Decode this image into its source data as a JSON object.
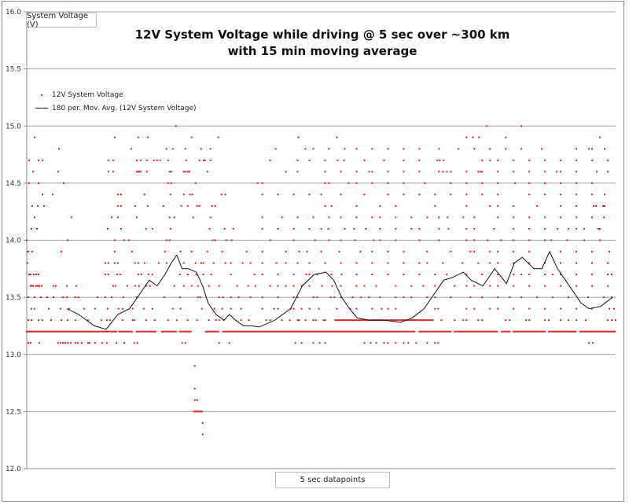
{
  "chart_data": {
    "type": "scatter",
    "title_line1": "12V System Voltage while driving @ 5 sec over ~300 km",
    "title_line2": "with 15 min moving average",
    "ylabel": "System Voltage (V)",
    "xlabel": "5 sec datapoints",
    "ylim": [
      12.0,
      16.0
    ],
    "xlim": [
      0,
      750
    ],
    "yticks": [
      "12.0",
      "12.5",
      "13.0",
      "13.5",
      "14.0",
      "14.5",
      "15.0",
      "15.5",
      "16.0"
    ],
    "grid": true,
    "legend_position": "top-left",
    "colors": {
      "scatter": "#d42020",
      "moving_average": "#111111",
      "grid": "#a0a0a0"
    },
    "series": [
      {
        "name": "12V System Voltage",
        "kind": "scatter",
        "continuous_ranges": [
          {
            "y": 13.2,
            "x": [
              [
                0,
                115
              ],
              [
                118,
                135
              ],
              [
                140,
                165
              ],
              [
                172,
                190
              ],
              [
                195,
                210
              ],
              [
                228,
                245
              ],
              [
                250,
                495
              ],
              [
                500,
                540
              ],
              [
                545,
                600
              ],
              [
                605,
                615
              ],
              [
                620,
                660
              ],
              [
                665,
                700
              ],
              [
                705,
                750
              ]
            ]
          },
          {
            "y": 13.3,
            "x": [
              [
                393,
                518
              ]
            ]
          }
        ],
        "points_by_level": [
          {
            "y": 12.3,
            "x": [
              224
            ]
          },
          {
            "y": 12.4,
            "x": [
              224
            ]
          },
          {
            "y": 12.5,
            "x": [
              213,
              215,
              217,
              219,
              221,
              223
            ]
          },
          {
            "y": 12.6,
            "x": [
              214,
              217
            ]
          },
          {
            "y": 12.7,
            "x": [
              214
            ]
          },
          {
            "y": 12.9,
            "x": [
              214
            ]
          },
          {
            "y": 13.1,
            "x": [
              2,
              5,
              16,
              40,
              43,
              46,
              49,
              52,
              56,
              62,
              65,
              70,
              78,
              80,
              87,
              96,
              102,
              114,
              124,
              137,
              141,
              198,
              202,
              245,
              258,
              342,
              350,
              365,
              373,
              380,
              430,
              438,
              445,
              455,
              460,
              470,
              480,
              486,
              496,
              510,
              520,
              524,
              716,
              721
            ]
          },
          {
            "y": 13.3,
            "x": [
              2,
              6,
              15,
              20,
              31,
              44,
              52,
              62,
              78,
              95,
              102,
              106,
              122,
              135,
              137,
              152,
              163,
              180,
              191,
              205,
              217,
              232,
              241,
              245,
              251,
              273,
              283,
              305,
              310,
              325,
              335,
              345,
              347,
              355,
              365,
              368,
              378,
              380,
              528,
              545,
              556,
              560,
              575,
              580,
              610,
              615,
              636,
              640,
              660,
              665,
              680,
              690,
              700,
              712,
              740,
              745,
              750
            ]
          },
          {
            "y": 13.4,
            "x": [
              6,
              10,
              28,
              43,
              54,
              73,
              87,
              103,
              117,
              122,
              135,
              149,
              160,
              186,
              196,
              223,
              239,
              249,
              260,
              273,
              300,
              315,
              320,
              336,
              340,
              350,
              360,
              372,
              395,
              412,
              420,
              440,
              452,
              460,
              470,
              520,
              524,
              560,
              570,
              590,
              600,
              620,
              640,
              660,
              680,
              700,
              720,
              742,
              748
            ]
          },
          {
            "y": 13.5,
            "x": [
              2,
              10,
              18,
              26,
              34,
              46,
              51,
              62,
              66,
              90,
              100,
              108,
              123,
              140,
              175,
              195,
              218,
              221,
              245,
              250,
              260,
              270,
              285,
              300,
              320,
              340,
              345,
              365,
              370,
              387,
              392,
              400,
              415,
              426,
              436,
              450,
              470,
              480,
              490,
              510,
              520,
              540,
              565,
              580,
              600,
              615,
              630,
              650,
              670,
              690,
              715,
              735,
              745
            ]
          },
          {
            "y": 13.6,
            "x": [
              5,
              6,
              8,
              12,
              14,
              16,
              19,
              34,
              37,
              51,
              63,
              110,
              113,
              128,
              138,
              143,
              152,
              157,
              188,
              200,
              210,
              218,
              232,
              245,
              268,
              282,
              291,
              310,
              320,
              330,
              340,
              350,
              360,
              376,
              389,
              400,
              420,
              430,
              445,
              470,
              490,
              505,
              520,
              545,
              560,
              570,
              590,
              600,
              620,
              640,
              660,
              680,
              700,
              720,
              740
            ]
          },
          {
            "y": 13.7,
            "x": [
              3,
              5,
              9,
              12,
              15,
              100,
              104,
              115,
              119,
              142,
              146,
              155,
              160,
              195,
              205,
              216,
              225,
              235,
              260,
              290,
              300,
              320,
              340,
              356,
              360,
              370,
              388,
              401,
              420,
              440,
              460,
              480,
              500,
              520,
              535,
              560,
              580,
              600,
              620,
              630,
              640,
              660,
              670,
              680,
              700,
              720,
              740,
              745
            ]
          },
          {
            "y": 13.8,
            "x": [
              1,
              100,
              104,
              112,
              116,
              138,
              142,
              150,
              168,
              178,
              200,
              215,
              222,
              225,
              238,
              253,
              260,
              275,
              285,
              300,
              318,
              330,
              345,
              360,
              380,
              400,
              420,
              440,
              460,
              480,
              500,
              510,
              530,
              555,
              575,
              590,
              600,
              620,
              640,
              660,
              680,
              700,
              720,
              740
            ]
          },
          {
            "y": 13.9,
            "x": [
              1,
              2,
              7,
              44,
              112,
              134,
              176,
              196,
              210,
              230,
              249,
              280,
              300,
              330,
              347,
              357,
              375,
              398,
              425,
              440,
              460,
              480,
              510,
              540,
              565,
              570,
              590,
              600,
              620,
              640,
              680,
              700,
              720,
              742
            ]
          },
          {
            "y": 14.0,
            "x": [
              0,
              52,
              112,
              124,
              130,
              178,
              182,
              237,
              240,
              254,
              261,
              310,
              340,
              367,
              385,
              400,
              418,
              442,
              450,
              470,
              500,
              525,
              560,
              570,
              587,
              604,
              620,
              640,
              660,
              668,
              688,
              710,
              730
            ]
          },
          {
            "y": 14.1,
            "x": [
              6,
              13,
              103,
              120,
              152,
              160,
              183,
              233,
              252,
              263,
              300,
              320,
              340,
              360,
              375,
              384,
              405,
              417,
              432,
              450,
              470,
              490,
              500,
              525,
              537,
              560,
              570,
              595,
              620,
              640,
              660,
              676,
              690,
              700,
              710,
              728,
              730
            ]
          },
          {
            "y": 14.2,
            "x": [
              10,
              57,
              108,
              116,
              140,
              182,
              188,
              212,
              234,
              300,
              325,
              345,
              365,
              385,
              400,
              420,
              440,
              450,
              470,
              490,
              510,
              525,
              536,
              556,
              570,
              600,
              620,
              640,
              660,
              680,
              700,
              720,
              735
            ]
          },
          {
            "y": 14.3,
            "x": [
              7,
              14,
              22,
              116,
              120,
              138,
              154,
              174,
              197,
              205,
              217,
              220,
              236,
              240,
              380,
              388,
              420,
              450,
              470,
              520,
              560,
              590,
              600,
              620,
              650,
              680,
              700,
              722,
              725,
              734,
              736
            ]
          },
          {
            "y": 14.4,
            "x": [
              20,
              33,
              116,
              120,
              150,
              183,
              200,
              208,
              211,
              248,
              253,
              300,
              320,
              340,
              360,
              375,
              400,
              430,
              460,
              480,
              500,
              520,
              540,
              560,
              580,
              600,
              640,
              660,
              680,
              700,
              720,
              736
            ]
          },
          {
            "y": 14.5,
            "x": [
              3,
              15,
              47,
              180,
              184,
              215,
              294,
              300,
              380,
              385,
              410,
              420,
              440,
              460,
              480,
              507,
              540,
              560,
              580,
              600,
              622,
              640,
              660,
              680,
              700,
              720
            ]
          },
          {
            "y": 14.6,
            "x": [
              8,
              40,
              104,
              110,
              140,
              141,
              143,
              145,
              153,
              182,
              184,
              200,
              202,
              205,
              207,
              230,
              330,
              345,
              380,
              400,
              420,
              436,
              440,
              460,
              480,
              500,
              525,
              530,
              535,
              540,
              560,
              575,
              578,
              580,
              600,
              620,
              640,
              660,
              675,
              680,
              700,
              726,
              740
            ]
          },
          {
            "y": 14.7,
            "x": [
              3,
              15,
              20,
              104,
              110,
              140,
              145,
              153,
              162,
              166,
              170,
              180,
              203,
              220,
              225,
              227,
              234,
              310,
              345,
              360,
              380,
              396,
              404,
              430,
              455,
              480,
              500,
              523,
              526,
              531,
              580,
              590,
              600,
              620,
              640,
              660,
              680,
              700,
              720,
              740
            ]
          },
          {
            "y": 14.8,
            "x": [
              41,
              133,
              178,
              186,
              202,
              222,
              234,
              317,
              355,
              365,
              385,
              405,
              420,
              440,
              460,
              480,
              500,
              525,
              550,
              570,
              590,
              610,
              630,
              656,
              700,
              716,
              720,
              736
            ]
          },
          {
            "y": 14.9,
            "x": [
              10,
              112,
              142,
              154,
              210,
              244,
              346,
              395,
              560,
              568,
              576,
              610,
              730
            ]
          },
          {
            "y": 15.0,
            "x": [
              190,
              586,
              630
            ]
          }
        ]
      },
      {
        "name": "180 per. Mov. Avg. (12V System Voltage)",
        "kind": "line",
        "x": [
          51,
          66,
          86,
          101,
          116,
          131,
          146,
          156,
          166,
          176,
          184,
          191,
          198,
          206,
          216,
          224,
          231,
          241,
          251,
          258,
          266,
          276,
          286,
          296,
          316,
          336,
          351,
          366,
          381,
          391,
          401,
          411,
          421,
          436,
          456,
          476,
          491,
          506,
          521,
          531,
          541,
          556,
          566,
          581,
          596,
          611,
          621,
          631,
          646,
          656,
          666,
          676,
          686,
          696,
          706,
          716,
          731,
          746
        ],
        "y": [
          13.4,
          13.35,
          13.25,
          13.22,
          13.35,
          13.4,
          13.55,
          13.65,
          13.6,
          13.7,
          13.8,
          13.87,
          13.75,
          13.75,
          13.72,
          13.6,
          13.45,
          13.35,
          13.3,
          13.35,
          13.3,
          13.25,
          13.25,
          13.24,
          13.3,
          13.4,
          13.6,
          13.7,
          13.72,
          13.65,
          13.5,
          13.4,
          13.32,
          13.3,
          13.3,
          13.28,
          13.32,
          13.4,
          13.55,
          13.65,
          13.67,
          13.72,
          13.65,
          13.6,
          13.75,
          13.62,
          13.8,
          13.85,
          13.75,
          13.75,
          13.9,
          13.75,
          13.65,
          13.55,
          13.45,
          13.4,
          13.42,
          13.5
        ]
      }
    ]
  }
}
